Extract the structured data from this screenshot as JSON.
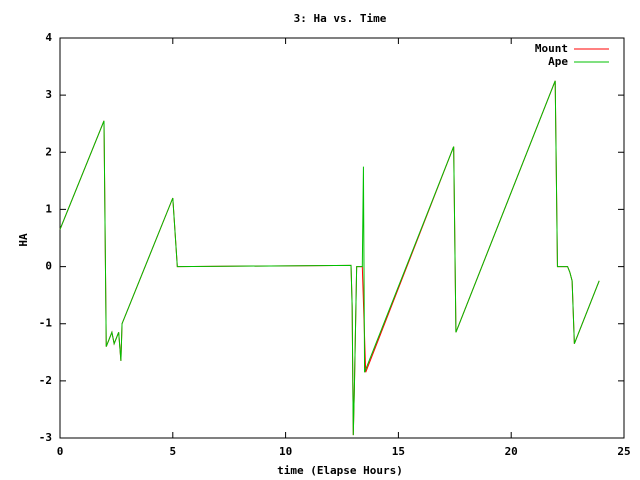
{
  "chart_data": {
    "type": "line",
    "title": "3: Ha vs. Time",
    "x_label": "time (Elapse Hours)",
    "y_label": "HA",
    "xlim": [
      0,
      25
    ],
    "xticks": [
      0,
      5,
      10,
      15,
      20,
      25
    ],
    "ylim": [
      -3,
      4
    ],
    "yticks": [
      -3,
      -2,
      -1,
      0,
      1,
      2,
      3,
      4
    ],
    "legend": "top-right",
    "series": [
      {
        "name": "Mount",
        "color": "#ff0000",
        "x": [
          0,
          1.95,
          2.05,
          2.3,
          2.4,
          2.6,
          2.7,
          2.75,
          5.0,
          5.2,
          12.9,
          12.95,
          13.0,
          13.05,
          13.15,
          13.4,
          13.55,
          17.45,
          17.55,
          21.95,
          22.05,
          22.5,
          22.6,
          22.7,
          22.8,
          23.9
        ],
        "values": [
          0.65,
          2.55,
          -1.4,
          -1.15,
          -1.35,
          -1.15,
          -1.65,
          -1.0,
          1.2,
          0.0,
          0.02,
          -0.7,
          -2.95,
          -2.1,
          0.0,
          0.0,
          -1.85,
          2.1,
          -1.15,
          3.25,
          0.0,
          0.0,
          -0.1,
          -0.25,
          -1.35,
          -0.25
        ]
      },
      {
        "name": "Ape",
        "color": "#00c000",
        "x": [
          0,
          1.95,
          2.05,
          2.3,
          2.4,
          2.6,
          2.7,
          2.75,
          5.0,
          5.2,
          12.9,
          12.95,
          13.0,
          13.05,
          13.15,
          13.4,
          13.45,
          13.5,
          17.45,
          17.55,
          21.95,
          22.05,
          22.5,
          22.6,
          22.7,
          22.8,
          23.9
        ],
        "values": [
          0.65,
          2.55,
          -1.4,
          -1.15,
          -1.35,
          -1.15,
          -1.65,
          -1.0,
          1.2,
          0.0,
          0.02,
          -0.7,
          -2.95,
          -2.1,
          0.0,
          0.0,
          1.75,
          -1.85,
          2.1,
          -1.15,
          3.25,
          0.0,
          0.0,
          -0.1,
          -0.25,
          -1.35,
          -0.25
        ]
      }
    ]
  }
}
